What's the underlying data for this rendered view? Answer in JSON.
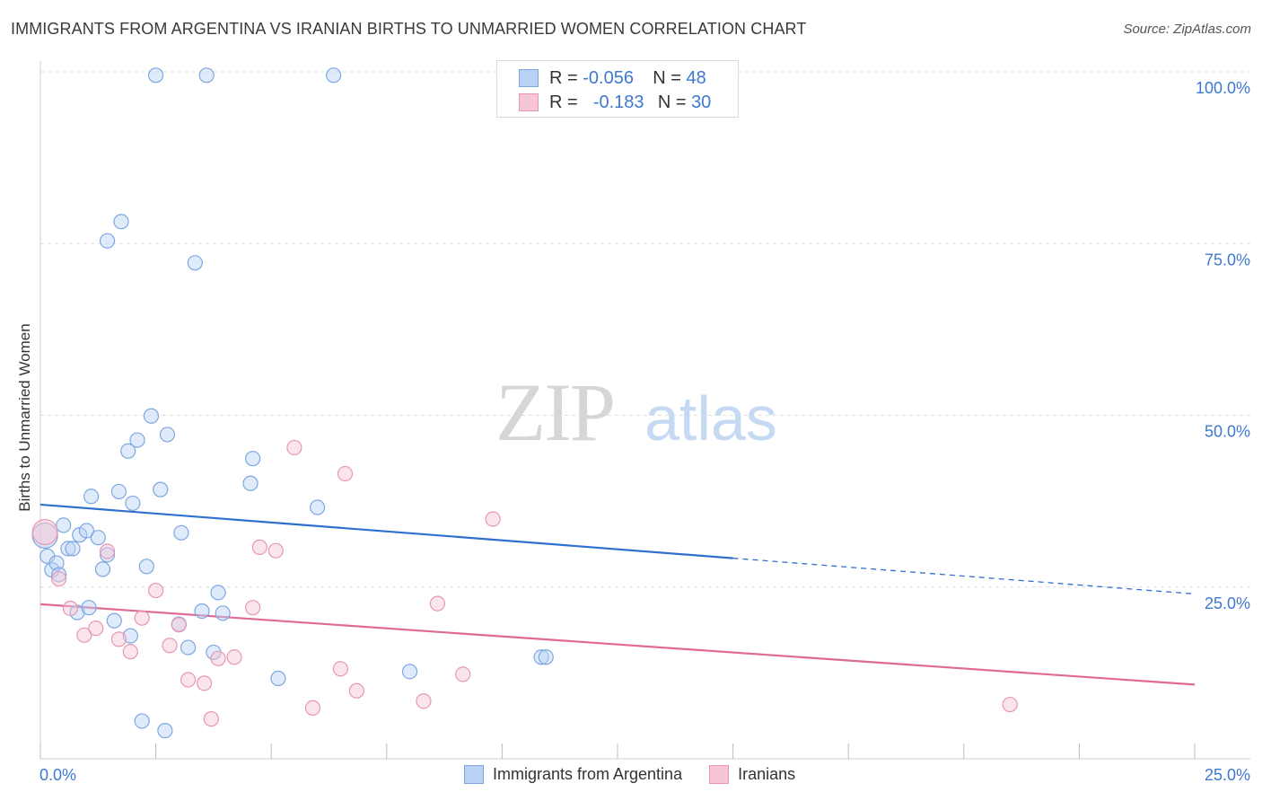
{
  "title": "IMMIGRANTS FROM ARGENTINA VS IRANIAN BIRTHS TO UNMARRIED WOMEN CORRELATION CHART",
  "source": "Source: ZipAtlas.com",
  "watermark": {
    "zip": "ZIP",
    "atlas": "atlas"
  },
  "legend": {
    "r_label": "R =",
    "n_label": "N =",
    "rows": [
      {
        "r": "-0.056",
        "n": "48"
      },
      {
        "r": "-0.183",
        "n": "30"
      }
    ]
  },
  "colors": {
    "blue_fill": "#b9d2f4",
    "blue_stroke": "#7ea7e0",
    "blue_line": "#2f6fcf",
    "pink_fill": "#f7c6d6",
    "pink_stroke": "#e896b2",
    "pink_line": "#e06a96",
    "tick_label": "#3e78d0",
    "grid": "#dddddd"
  },
  "chart_data": {
    "type": "scatter",
    "xlabel": "",
    "ylabel": "Births to Unmarried Women",
    "xlim": [
      0,
      25
    ],
    "ylim": [
      0,
      100
    ],
    "x_tick_labels": [
      "0.0%",
      "25.0%"
    ],
    "y_ticks": [
      25,
      50,
      75,
      100
    ],
    "y_tick_labels": [
      "25.0%",
      "50.0%",
      "75.0%",
      "100.0%"
    ],
    "grid": true,
    "legend_position": "top-center",
    "series": [
      {
        "name": "Immigrants from Argentina",
        "color": "blue",
        "points": [
          [
            0.1,
            32.5
          ],
          [
            0.15,
            29.5
          ],
          [
            0.25,
            27.5
          ],
          [
            0.35,
            28.5
          ],
          [
            0.4,
            26.8
          ],
          [
            0.5,
            34.0
          ],
          [
            0.6,
            30.6
          ],
          [
            0.7,
            30.6
          ],
          [
            0.8,
            21.3
          ],
          [
            0.85,
            32.6
          ],
          [
            1.0,
            33.2
          ],
          [
            1.05,
            22.0
          ],
          [
            1.1,
            38.2
          ],
          [
            1.25,
            32.2
          ],
          [
            1.35,
            27.6
          ],
          [
            1.45,
            29.7
          ],
          [
            1.6,
            20.1
          ],
          [
            1.7,
            38.9
          ],
          [
            1.75,
            78.2
          ],
          [
            1.45,
            75.4
          ],
          [
            1.9,
            44.8
          ],
          [
            1.95,
            17.9
          ],
          [
            2.0,
            37.2
          ],
          [
            2.1,
            46.4
          ],
          [
            2.2,
            5.5
          ],
          [
            2.3,
            28.0
          ],
          [
            2.4,
            49.9
          ],
          [
            2.5,
            99.5
          ],
          [
            2.6,
            39.2
          ],
          [
            2.7,
            4.1
          ],
          [
            2.75,
            47.2
          ],
          [
            3.0,
            19.6
          ],
          [
            3.05,
            32.9
          ],
          [
            3.2,
            16.2
          ],
          [
            3.35,
            72.2
          ],
          [
            3.5,
            21.5
          ],
          [
            3.6,
            99.5
          ],
          [
            3.75,
            15.5
          ],
          [
            3.85,
            24.2
          ],
          [
            3.95,
            21.2
          ],
          [
            4.55,
            40.1
          ],
          [
            4.6,
            43.7
          ],
          [
            5.15,
            11.7
          ],
          [
            6.0,
            36.6
          ],
          [
            6.35,
            99.5
          ],
          [
            8.0,
            12.7
          ],
          [
            10.85,
            14.8
          ],
          [
            10.95,
            14.8
          ]
        ]
      },
      {
        "name": "Iranians",
        "color": "pink",
        "points": [
          [
            0.1,
            33.0
          ],
          [
            0.4,
            26.2
          ],
          [
            0.65,
            21.9
          ],
          [
            0.95,
            18.0
          ],
          [
            1.2,
            19.0
          ],
          [
            1.45,
            30.2
          ],
          [
            1.7,
            17.4
          ],
          [
            1.95,
            15.6
          ],
          [
            2.2,
            20.5
          ],
          [
            2.5,
            24.5
          ],
          [
            2.8,
            16.5
          ],
          [
            3.0,
            19.5
          ],
          [
            3.2,
            11.5
          ],
          [
            3.55,
            11.0
          ],
          [
            3.7,
            5.8
          ],
          [
            3.85,
            14.6
          ],
          [
            4.2,
            14.8
          ],
          [
            4.6,
            22.0
          ],
          [
            4.75,
            30.8
          ],
          [
            5.1,
            30.3
          ],
          [
            5.5,
            45.3
          ],
          [
            5.9,
            7.4
          ],
          [
            6.5,
            13.1
          ],
          [
            6.6,
            41.5
          ],
          [
            6.85,
            9.9
          ],
          [
            8.3,
            8.4
          ],
          [
            8.6,
            22.6
          ],
          [
            9.15,
            12.3
          ],
          [
            9.8,
            34.9
          ],
          [
            21.0,
            7.9
          ]
        ]
      }
    ],
    "trend_lines": [
      {
        "series": "Immigrants from Argentina",
        "solid": [
          [
            0,
            37.0
          ],
          [
            15,
            29.2
          ]
        ],
        "dashed": [
          [
            15,
            29.2
          ],
          [
            25,
            24.0
          ]
        ]
      },
      {
        "series": "Iranians",
        "solid": [
          [
            0,
            22.5
          ],
          [
            25,
            10.8
          ]
        ]
      }
    ]
  }
}
